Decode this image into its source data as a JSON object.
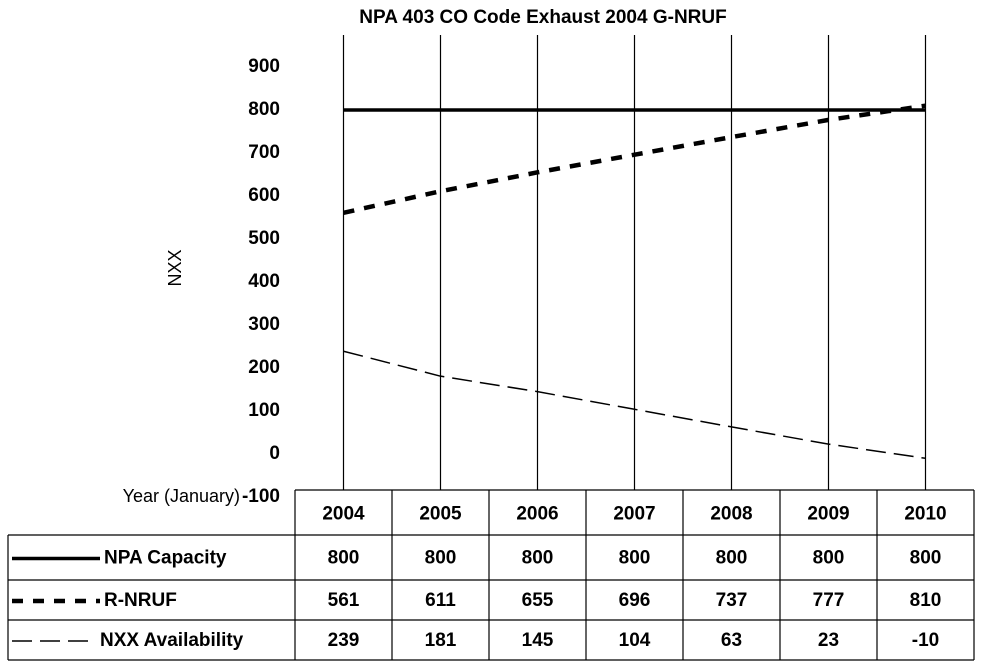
{
  "chart_data": {
    "type": "line",
    "title": "NPA 403 CO Code Exhaust 2004 G-NRUF",
    "y_label": "NXX",
    "x_label": "Year (January)",
    "categories": [
      "2004",
      "2005",
      "2006",
      "2007",
      "2008",
      "2009",
      "2010"
    ],
    "series": [
      {
        "name": "NPA Capacity",
        "color": "#000000",
        "style": "solid",
        "values": [
          800,
          800,
          800,
          800,
          800,
          800,
          800
        ]
      },
      {
        "name": "R-NRUF",
        "color": "#000000",
        "style": "dotted",
        "values": [
          561,
          611,
          655,
          696,
          737,
          777,
          810
        ]
      },
      {
        "name": "NXX Availability",
        "color": "#000000",
        "style": "dashed",
        "values": [
          239,
          181,
          145,
          104,
          63,
          23,
          -10
        ]
      }
    ],
    "ylim": [
      -100,
      900
    ],
    "yticks": [
      -100,
      0,
      100,
      200,
      300,
      400,
      500,
      600,
      700,
      800,
      900
    ]
  }
}
